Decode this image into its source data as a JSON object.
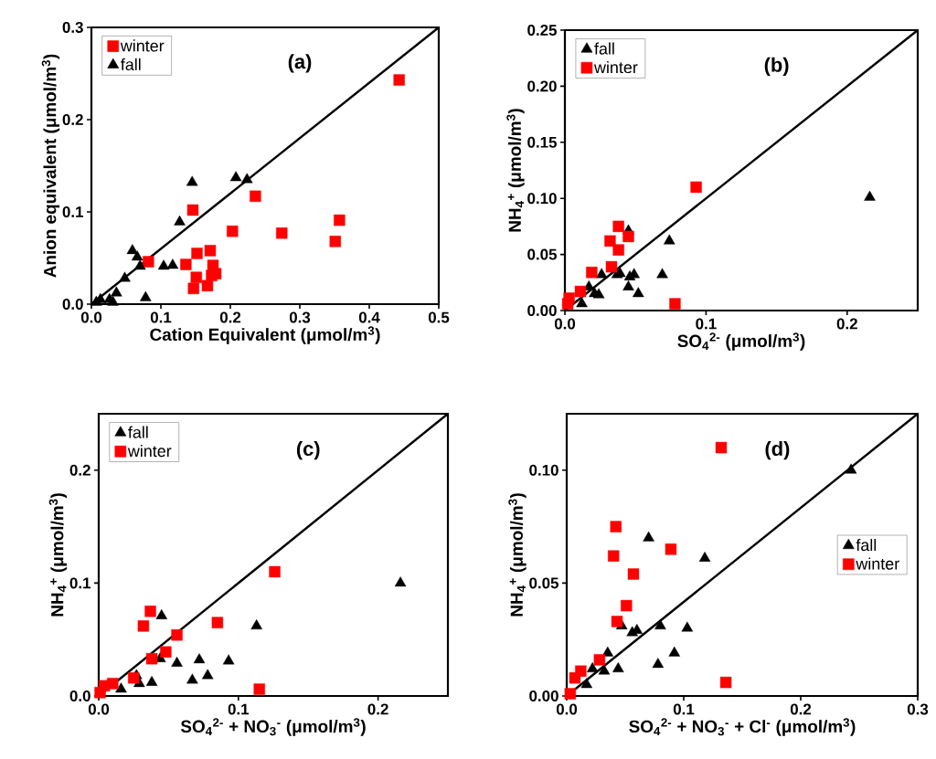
{
  "chart_data": [
    {
      "type": "scatter",
      "xlabel": "Cation Equivalent (μmol/m$^{3}$)",
      "ylabel": "Anion equivalent (μmol/m$^{3}$)",
      "annotations": [
        "(a)"
      ],
      "legend": "top left",
      "xlim": [
        0,
        0.5
      ],
      "ylim": [
        0,
        0.3
      ],
      "xticks": [
        {
          "value": 0,
          "label": "0.0"
        },
        {
          "value": 0.1,
          "label": "0.1"
        },
        {
          "value": 0.2,
          "label": "0.2"
        },
        {
          "value": 0.3,
          "label": "0.3"
        },
        {
          "value": 0.4,
          "label": "0.4"
        },
        {
          "value": 0.5,
          "label": "0.5"
        }
      ],
      "yticks": [
        {
          "value": 0,
          "label": "0.0"
        },
        {
          "value": 0.1,
          "label": "0.1"
        },
        {
          "value": 0.2,
          "label": "0.2"
        },
        {
          "value": 0.3,
          "label": "0.3"
        }
      ],
      "series": [
        {
          "name": "winter",
          "color": "#ff0000",
          "marker": "square",
          "x": [
            0.443,
            0.236,
            0.146,
            0.357,
            0.203,
            0.274,
            0.351,
            0.152,
            0.171,
            0.082,
            0.136,
            0.175,
            0.179,
            0.173,
            0.151,
            0.167,
            0.147
          ],
          "values": [
            0.243,
            0.117,
            0.102,
            0.091,
            0.079,
            0.077,
            0.068,
            0.055,
            0.058,
            0.046,
            0.043,
            0.042,
            0.033,
            0.031,
            0.029,
            0.02,
            0.017
          ]
        },
        {
          "name": "fall",
          "color": "#000000",
          "marker": "triangle",
          "x": [
            0.145,
            0.208,
            0.224,
            0.127,
            0.059,
            0.066,
            0.07,
            0.104,
            0.117,
            0.048,
            0.036,
            0.078,
            0.026,
            0.013,
            0.007,
            0.031
          ],
          "values": [
            0.132,
            0.137,
            0.135,
            0.089,
            0.058,
            0.051,
            0.041,
            0.041,
            0.042,
            0.028,
            0.012,
            0.007,
            0.005,
            0.005,
            0.002,
            0.002
          ]
        },
        {
          "type": "line",
          "color": "#000000",
          "marker": "none",
          "x": [
            0,
            0.5
          ],
          "values": [
            0,
            0.3
          ]
        }
      ]
    },
    {
      "type": "scatter",
      "xlabel": "SO$_{4}$$^{2-}$ (μmol/m$^{3}$)",
      "ylabel": "NH$_{4}$$^{+}$ (μmol/m$^{3}$)",
      "annotations": [
        "(b)"
      ],
      "legend": "top left",
      "xlim": [
        0,
        0.25
      ],
      "ylim": [
        0,
        0.25
      ],
      "xticks": [
        {
          "value": 0,
          "label": "0.0"
        },
        {
          "value": 0.1,
          "label": "0.1"
        },
        {
          "value": 0.2,
          "label": "0.2"
        }
      ],
      "yticks": [
        {
          "value": 0,
          "label": "0.00"
        },
        {
          "value": 0.05,
          "label": "0.05"
        },
        {
          "value": 0.1,
          "label": "0.10"
        },
        {
          "value": 0.15,
          "label": "0.15"
        },
        {
          "value": 0.2,
          "label": "0.20"
        },
        {
          "value": 0.25,
          "label": "0.25"
        }
      ],
      "series": [
        {
          "name": "fall",
          "color": "#000000",
          "marker": "triangle",
          "x": [
            0.216,
            0.045,
            0.074,
            0.069,
            0.026,
            0.037,
            0.039,
            0.046,
            0.049,
            0.045,
            0.052,
            0.017,
            0.021,
            0.024,
            0.012
          ],
          "values": [
            0.101,
            0.071,
            0.062,
            0.032,
            0.032,
            0.032,
            0.033,
            0.03,
            0.032,
            0.021,
            0.015,
            0.021,
            0.015,
            0.014,
            0.006
          ]
        },
        {
          "name": "winter",
          "color": "#ff0000",
          "marker": "square",
          "x": [
            0.093,
            0.038,
            0.032,
            0.045,
            0.038,
            0.033,
            0.019,
            0.011,
            0.003,
            0.002,
            0.078
          ],
          "values": [
            0.11,
            0.075,
            0.062,
            0.066,
            0.054,
            0.039,
            0.034,
            0.017,
            0.011,
            0.006,
            0.006
          ]
        },
        {
          "type": "line",
          "color": "#000000",
          "marker": "none",
          "x": [
            0,
            0.25
          ],
          "values": [
            0,
            0.25
          ]
        }
      ]
    },
    {
      "type": "scatter",
      "xlabel": "SO$_{4}$$^{2-}$ + NO$_{3}$$^{-}$ (μmol/m$^{3}$)",
      "ylabel": "NH$_{4}$$^{+}$ (μmol/m$^{3}$)",
      "annotations": [
        "(c)"
      ],
      "legend": "top left",
      "xlim": [
        0,
        0.25
      ],
      "ylim": [
        0,
        0.25
      ],
      "xticks": [
        {
          "value": 0,
          "label": "0.0"
        },
        {
          "value": 0.1,
          "label": "0.1"
        },
        {
          "value": 0.2,
          "label": "0.2"
        }
      ],
      "yticks": [
        {
          "value": 0,
          "label": "0.0"
        },
        {
          "value": 0.1,
          "label": "0.1"
        },
        {
          "value": 0.2,
          "label": "0.2"
        }
      ],
      "series": [
        {
          "name": "fall",
          "color": "#000000",
          "marker": "triangle",
          "x": [
            0.216,
            0.113,
            0.045,
            0.093,
            0.072,
            0.056,
            0.044,
            0.078,
            0.067,
            0.038,
            0.029,
            0.027,
            0.016
          ],
          "values": [
            0.1,
            0.062,
            0.071,
            0.031,
            0.032,
            0.029,
            0.033,
            0.018,
            0.014,
            0.012,
            0.011,
            0.018,
            0.006
          ]
        },
        {
          "name": "winter",
          "color": "#ff0000",
          "marker": "square",
          "x": [
            0.126,
            0.037,
            0.032,
            0.085,
            0.056,
            0.048,
            0.038,
            0.025,
            0.01,
            0.004,
            0.001,
            0.115
          ],
          "values": [
            0.11,
            0.075,
            0.062,
            0.065,
            0.054,
            0.039,
            0.033,
            0.016,
            0.011,
            0.009,
            0.003,
            0.006
          ]
        },
        {
          "type": "line",
          "color": "#000000",
          "marker": "none",
          "x": [
            0,
            0.25
          ],
          "values": [
            0,
            0.25
          ]
        }
      ]
    },
    {
      "type": "scatter",
      "xlabel": "SO$_{4}$$^{2-}$ + NO$_{3}$$^{-}$ + Cl$^{-}$ (μmol/m$^{3}$)",
      "ylabel": "NH$_{4}$$^{+}$ (μmol/m$^{3}$)",
      "annotations": [
        "(d)"
      ],
      "legend": "right",
      "xlim": [
        0,
        0.3
      ],
      "ylim": [
        0,
        0.125
      ],
      "xticks": [
        {
          "value": 0,
          "label": "0.0"
        },
        {
          "value": 0.1,
          "label": "0.1"
        },
        {
          "value": 0.2,
          "label": "0.2"
        },
        {
          "value": 0.3,
          "label": "0.3"
        }
      ],
      "yticks": [
        {
          "value": 0,
          "label": "0.00"
        },
        {
          "value": 0.05,
          "label": "0.05"
        },
        {
          "value": 0.1,
          "label": "0.10"
        }
      ],
      "series": [
        {
          "name": "fall",
          "color": "#000000",
          "marker": "triangle",
          "x": [
            0.243,
            0.07,
            0.118,
            0.047,
            0.056,
            0.06,
            0.08,
            0.103,
            0.092,
            0.078,
            0.035,
            0.044,
            0.032,
            0.022,
            0.017
          ],
          "values": [
            0.1,
            0.07,
            0.061,
            0.031,
            0.028,
            0.029,
            0.031,
            0.03,
            0.019,
            0.014,
            0.019,
            0.012,
            0.011,
            0.012,
            0.005
          ]
        },
        {
          "name": "winter",
          "color": "#ff0000",
          "marker": "square",
          "x": [
            0.132,
            0.042,
            0.04,
            0.089,
            0.057,
            0.051,
            0.043,
            0.028,
            0.012,
            0.007,
            0.003,
            0.136
          ],
          "values": [
            0.11,
            0.075,
            0.062,
            0.065,
            0.054,
            0.04,
            0.033,
            0.016,
            0.011,
            0.008,
            0.001,
            0.006
          ]
        },
        {
          "type": "line",
          "color": "#000000",
          "marker": "none",
          "x": [
            0,
            0.3
          ],
          "values": [
            0,
            0.125
          ]
        }
      ]
    }
  ]
}
